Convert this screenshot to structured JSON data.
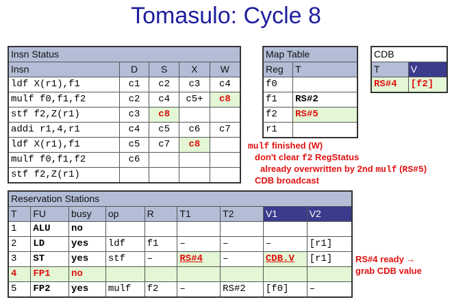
{
  "title": "Tomasulo: Cycle 8",
  "insn_status": {
    "caption": "Insn Status",
    "headers": [
      "Insn",
      "D",
      "S",
      "X",
      "W"
    ],
    "rows": [
      [
        "ldf X(r1),f1",
        "c1",
        "c2",
        "c3",
        "c4"
      ],
      [
        "mulf f0,f1,f2",
        "c2",
        "c4",
        "c5+",
        "c8"
      ],
      [
        "stf f2,Z(r1)",
        "c3",
        "c8",
        "",
        ""
      ],
      [
        "addi r1,4,r1",
        "c4",
        "c5",
        "c6",
        "c7"
      ],
      [
        "ldf X(r1),f1",
        "c5",
        "c7",
        "c8",
        ""
      ],
      [
        "mulf f0,f1,f2",
        "c6",
        "",
        "",
        ""
      ],
      [
        "stf f2,Z(r1)",
        "",
        "",
        "",
        ""
      ]
    ]
  },
  "map_table": {
    "caption": "Map Table",
    "headers": [
      "Reg",
      "T"
    ],
    "rows": [
      [
        "f0",
        ""
      ],
      [
        "f1",
        "RS#2"
      ],
      [
        "f2",
        "RS#5"
      ],
      [
        "r1",
        ""
      ]
    ]
  },
  "cdb": {
    "caption": "CDB",
    "headers": [
      "T",
      "V"
    ],
    "row": [
      "RS#4",
      "[f2]"
    ]
  },
  "notes": {
    "line1_code": "mulf",
    "line1_text": " finished (W)",
    "line2_a": "don't clear ",
    "line2_code": "f2",
    "line2_b": " RegStatus",
    "line3_a": "already overwritten by 2nd ",
    "line3_code": "mulf",
    "line3_b": " (",
    "line3_code2": "RS#5",
    "line3_c": ")",
    "line4": "CDB broadcast",
    "rs_a": "RS#4 ready →",
    "rs_b": "grab CDB value"
  },
  "reservation_stations": {
    "caption": "Reservation Stations",
    "headers": [
      "T",
      "FU",
      "busy",
      "op",
      "R",
      "T1",
      "T2",
      "V1",
      "V2"
    ],
    "rows": [
      [
        "1",
        "ALU",
        "no",
        "",
        "",
        "",
        "",
        "",
        ""
      ],
      [
        "2",
        "LD",
        "yes",
        "ldf",
        "f1",
        "–",
        "–",
        "–",
        "[r1]"
      ],
      [
        "3",
        "ST",
        "yes",
        "stf",
        "–",
        "RS#4",
        "–",
        "CDB.V",
        "[r1]"
      ],
      [
        "4",
        "FP1",
        "no",
        "",
        "",
        "",
        "",
        "",
        ""
      ],
      [
        "5",
        "FP2",
        "yes",
        "mulf",
        "f2",
        "–",
        "RS#2",
        "[f0]",
        "–"
      ]
    ]
  }
}
